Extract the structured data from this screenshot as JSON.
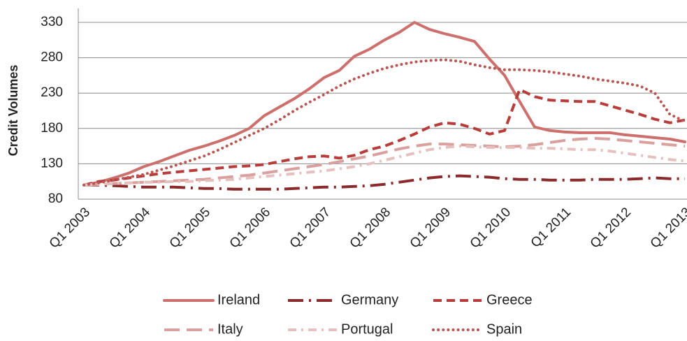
{
  "chart_data": {
    "type": "line",
    "y_label": "Credit Volumes",
    "categories": [
      "Q1 2003",
      null,
      null,
      null,
      "Q1 2004",
      null,
      null,
      null,
      "Q1 2005",
      null,
      null,
      null,
      "Q1 2006",
      null,
      null,
      null,
      "Q1 2007",
      null,
      null,
      null,
      "Q1 2008",
      null,
      null,
      null,
      "Q1 2009",
      null,
      null,
      null,
      "Q1 2010",
      null,
      null,
      null,
      "Q1 2011",
      null,
      null,
      null,
      "Q1 2012",
      null,
      null,
      null,
      "Q1 2013"
    ],
    "ylim": [
      80,
      330
    ],
    "yticks": [
      80,
      130,
      180,
      230,
      280,
      330
    ],
    "grid": true,
    "legend": "bottom",
    "series": [
      {
        "name": "Ireland",
        "color": "#cd6f6c",
        "style": "solid",
        "values": [
          100,
          104,
          110,
          117,
          126,
          133,
          141,
          149,
          155,
          162,
          170,
          180,
          198,
          210,
          222,
          236,
          252,
          262,
          282,
          292,
          305,
          316,
          330,
          320,
          314,
          309,
          303,
          278,
          255,
          218,
          182,
          177,
          175,
          174,
          174,
          174,
          171,
          169,
          167,
          165,
          161
        ]
      },
      {
        "name": "Germany",
        "color": "#8b2a2a",
        "style": "long-dash-dot",
        "values": [
          100,
          100,
          99,
          98,
          97,
          97,
          97,
          96,
          95,
          95,
          94,
          94,
          94,
          94,
          95,
          96,
          97,
          97,
          98,
          99,
          101,
          104,
          107,
          110,
          112,
          113,
          112,
          111,
          109,
          108,
          108,
          107,
          107,
          107,
          108,
          108,
          108,
          109,
          110,
          109,
          109
        ]
      },
      {
        "name": "Greece",
        "color": "#b83d3a",
        "style": "dash",
        "values": [
          100,
          105,
          107,
          110,
          113,
          116,
          118,
          120,
          122,
          124,
          126,
          127,
          129,
          133,
          137,
          140,
          141,
          138,
          142,
          150,
          155,
          163,
          172,
          182,
          188,
          186,
          180,
          172,
          177,
          235,
          225,
          220,
          219,
          218,
          218,
          212,
          206,
          200,
          193,
          188,
          192
        ]
      },
      {
        "name": "Italy",
        "color": "#d9a09e",
        "style": "long-dash",
        "values": [
          100,
          101,
          102,
          103,
          104,
          105,
          106,
          107,
          108,
          110,
          112,
          114,
          117,
          120,
          123,
          126,
          129,
          133,
          137,
          141,
          146,
          151,
          155,
          158,
          158,
          157,
          156,
          155,
          154,
          155,
          157,
          160,
          163,
          165,
          166,
          165,
          163,
          161,
          159,
          157,
          155
        ]
      },
      {
        "name": "Portugal",
        "color": "#e6c0bf",
        "style": "dash-dot",
        "values": [
          100,
          101,
          102,
          103,
          104,
          104,
          105,
          105,
          106,
          107,
          108,
          110,
          112,
          114,
          116,
          118,
          120,
          123,
          126,
          130,
          135,
          140,
          145,
          150,
          153,
          155,
          154,
          153,
          153,
          153,
          152,
          152,
          151,
          150,
          150,
          148,
          145,
          142,
          139,
          136,
          134
        ]
      },
      {
        "name": "Spain",
        "color": "#b95653",
        "style": "dot",
        "values": [
          100,
          103,
          107,
          111,
          115,
          121,
          127,
          134,
          141,
          150,
          160,
          170,
          180,
          192,
          205,
          217,
          228,
          240,
          250,
          258,
          265,
          270,
          274,
          276,
          277,
          275,
          270,
          266,
          263,
          263,
          262,
          260,
          257,
          254,
          250,
          247,
          244,
          240,
          230,
          200,
          190
        ]
      }
    ]
  }
}
